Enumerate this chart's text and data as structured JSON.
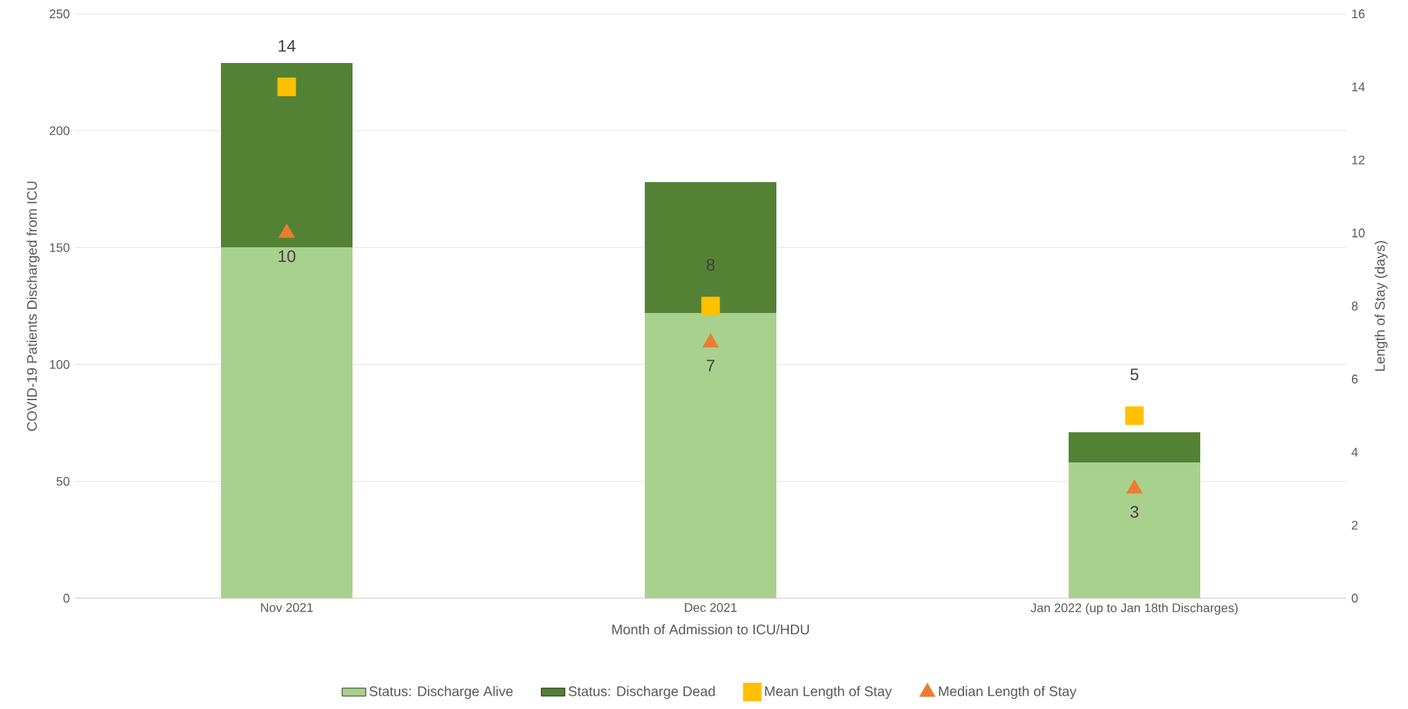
{
  "chart_data": {
    "type": "bar",
    "stacked": true,
    "categories": [
      "Nov 2021",
      "Dec 2021",
      "Jan 2022 (up to Jan 18th Discharges)"
    ],
    "xlabel": "Month of Admission to ICU/HDU",
    "ylabel": "COVID-19 Patients Discharged from ICU",
    "y2label": "Length of Stay (days)",
    "ylim": [
      0,
      250
    ],
    "yticks": [
      0,
      50,
      100,
      150,
      200,
      250
    ],
    "y2lim": [
      0,
      16
    ],
    "y2ticks": [
      0,
      2,
      4,
      6,
      8,
      10,
      12,
      14,
      16
    ],
    "grid": "y",
    "legend": "bottom",
    "series": [
      {
        "name": "Status: Discharge Alive",
        "type": "bar",
        "color": "#a9d18e",
        "values": [
          150,
          122,
          58
        ]
      },
      {
        "name": "Status: Discharge Dead",
        "type": "bar",
        "color": "#548235",
        "values": [
          79,
          56,
          13
        ]
      },
      {
        "name": "Mean Length of Stay",
        "type": "scatter",
        "axis": "y2",
        "marker": "square",
        "color": "#ffc000",
        "values": [
          14,
          8,
          5
        ],
        "value_labels": [
          "14",
          "8",
          "5"
        ]
      },
      {
        "name": "Median Length of Stay",
        "type": "scatter",
        "axis": "y2",
        "marker": "triangle",
        "color": "#ed7d31",
        "values": [
          10,
          7,
          3
        ],
        "value_labels": [
          "10",
          "7",
          "3"
        ]
      }
    ]
  }
}
